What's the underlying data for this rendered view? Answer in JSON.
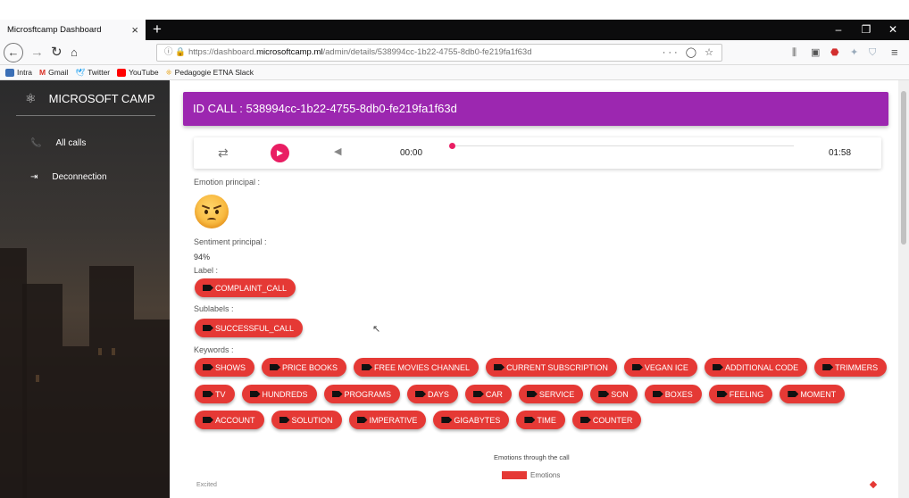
{
  "browser": {
    "tab_title": "Microsftcamp Dashboard",
    "url_prefix": "https://dashboard.",
    "url_host": "microsoftcamp.ml",
    "url_path": "/admin/details/538994cc-1b22-4755-8db0-fe219fa1f63d",
    "bookmarks": [
      {
        "label": "Intra",
        "color": "#3b6fb6"
      },
      {
        "label": "Gmail",
        "color": "#d93025"
      },
      {
        "label": "Twitter",
        "color": "#1da1f2"
      },
      {
        "label": "YouTube",
        "color": "#ff0000"
      },
      {
        "label": "Pedagogie ETNA Slack",
        "color": "#e8a317"
      }
    ]
  },
  "sidebar": {
    "brand": "MICROSOFT CAMP",
    "items": [
      {
        "label": "All calls",
        "icon": "phone-icon"
      },
      {
        "label": "Deconnection",
        "icon": "logout-icon"
      }
    ]
  },
  "header": {
    "title": "ID CALL : 538994cc-1b22-4755-8db0-fe219fa1f63d"
  },
  "player": {
    "current_time": "00:00",
    "duration": "01:58",
    "progress": 0
  },
  "details": {
    "emotion_label": "Emotion principal :",
    "emotion_icon": "angry-face-emoji",
    "sentiment_label": "Sentiment principal :",
    "sentiment_value": "94%",
    "label_label": "Label :",
    "label_value": "COMPLAINT_CALL",
    "sublabels_label": "Sublabels :",
    "sublabels": [
      "SUCCESSFUL_CALL"
    ],
    "keywords_label": "Keywords :",
    "keywords": [
      [
        "SHOWS",
        "PRICE BOOKS",
        "FREE MOVIES CHANNEL",
        "CURRENT SUBSCRIPTION",
        "VEGAN ICE",
        "ADDITIONAL CODE",
        "TRIMMERS"
      ],
      [
        "TV",
        "HUNDREDS",
        "PROGRAMS",
        "DAYS",
        "CAR",
        "SERVICE",
        "SON",
        "BOXES",
        "FEELING",
        "MOMENT"
      ],
      [
        "ACCOUNT",
        "SOLUTION",
        "IMPERATIVE",
        "GIGABYTES",
        "TIME",
        "COUNTER"
      ]
    ]
  },
  "chart": {
    "title": "Emotions through the call",
    "legend": "Emotions",
    "legend_color": "#e53935",
    "first_axis_label": "Excited"
  }
}
